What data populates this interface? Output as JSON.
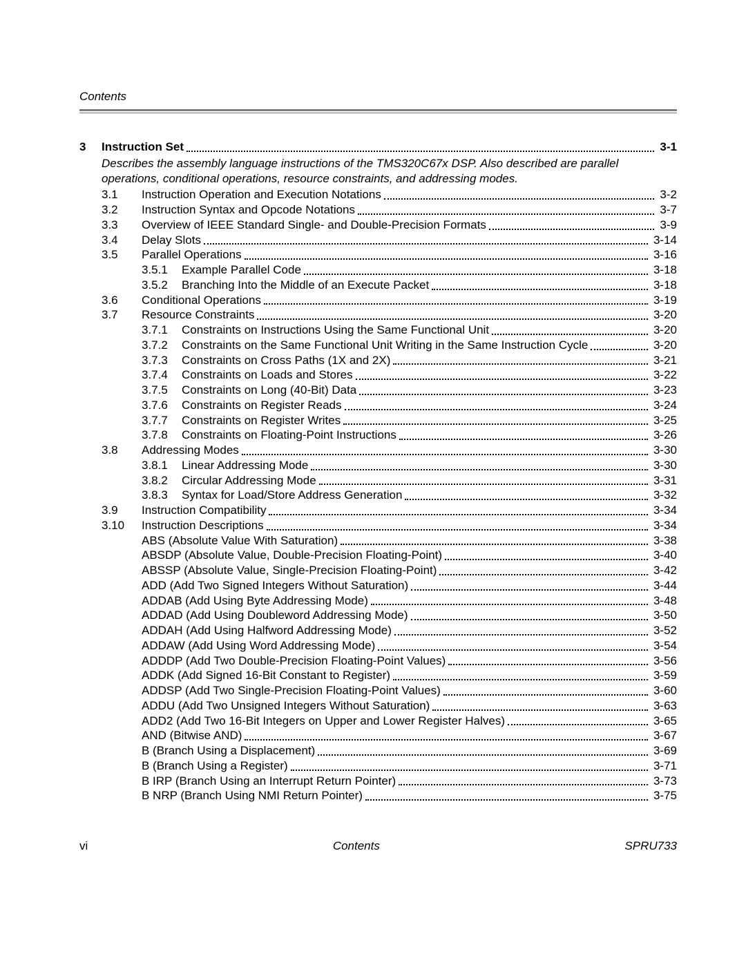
{
  "running_header": "Contents",
  "footer": {
    "left": "vi",
    "mid": "Contents",
    "right": "SPRU733"
  },
  "colors": {
    "rule": "#7a7a7a",
    "text": "#000000",
    "background": "#ffffff"
  },
  "typography": {
    "body_pt": 13,
    "line_height": 1.28,
    "font_family": "Helvetica/Arial"
  },
  "chapter": {
    "num": "3",
    "title": "Instruction Set",
    "page": "3-1",
    "description": "Describes the assembly language instructions of the TMS320C67x DSP. Also described are parallel operations, conditional operations, resource constraints, and addressing modes."
  },
  "entries": [
    {
      "sec": "3.1",
      "title": "Instruction Operation and Execution Notations",
      "page": "3-2"
    },
    {
      "sec": "3.2",
      "title": "Instruction Syntax and Opcode Notations",
      "page": "3-7"
    },
    {
      "sec": "3.3",
      "title": "Overview of IEEE Standard Single- and Double-Precision Formats",
      "page": "3-9"
    },
    {
      "sec": "3.4",
      "title": "Delay Slots",
      "page": "3-14"
    },
    {
      "sec": "3.5",
      "title": "Parallel Operations",
      "page": "3-16"
    },
    {
      "sub": "3.5.1",
      "title": "Example Parallel Code",
      "page": "3-18"
    },
    {
      "sub": "3.5.2",
      "title": "Branching Into the Middle of an Execute Packet",
      "page": "3-18"
    },
    {
      "sec": "3.6",
      "title": "Conditional Operations",
      "page": "3-19"
    },
    {
      "sec": "3.7",
      "title": "Resource Constraints",
      "page": "3-20"
    },
    {
      "sub": "3.7.1",
      "title": "Constraints on Instructions Using the Same Functional Unit",
      "page": "3-20"
    },
    {
      "sub": "3.7.2",
      "title": "Constraints on the Same Functional Unit Writing in the Same Instruction Cycle",
      "page": "3-20"
    },
    {
      "sub": "3.7.3",
      "title": "Constraints on Cross Paths (1X and 2X)",
      "page": "3-21"
    },
    {
      "sub": "3.7.4",
      "title": "Constraints on Loads and Stores",
      "page": "3-22"
    },
    {
      "sub": "3.7.5",
      "title": "Constraints on Long (40-Bit) Data",
      "page": "3-23"
    },
    {
      "sub": "3.7.6",
      "title": "Constraints on Register Reads",
      "page": "3-24"
    },
    {
      "sub": "3.7.7",
      "title": "Constraints on Register Writes",
      "page": "3-25"
    },
    {
      "sub": "3.7.8",
      "title": "Constraints on Floating-Point Instructions",
      "page": "3-26"
    },
    {
      "sec": "3.8",
      "title": "Addressing Modes",
      "page": "3-30"
    },
    {
      "sub": "3.8.1",
      "title": "Linear Addressing Mode",
      "page": "3-30"
    },
    {
      "sub": "3.8.2",
      "title": "Circular Addressing Mode",
      "page": "3-31"
    },
    {
      "sub": "3.8.3",
      "title": "Syntax for Load/Store Address Generation",
      "page": "3-32"
    },
    {
      "sec": "3.9",
      "title": "Instruction Compatibility",
      "page": "3-34"
    },
    {
      "sec": "3.10",
      "title": "Instruction Descriptions",
      "page": "3-34"
    },
    {
      "plain": true,
      "title": "ABS (Absolute Value With Saturation)",
      "page": "3-38"
    },
    {
      "plain": true,
      "title": "ABSDP (Absolute Value, Double-Precision Floating-Point)",
      "page": "3-40"
    },
    {
      "plain": true,
      "title": "ABSSP (Absolute Value, Single-Precision Floating-Point)",
      "page": "3-42"
    },
    {
      "plain": true,
      "title": "ADD (Add Two Signed Integers Without Saturation)",
      "page": "3-44"
    },
    {
      "plain": true,
      "title": "ADDAB (Add Using Byte Addressing Mode)",
      "page": "3-48"
    },
    {
      "plain": true,
      "title": "ADDAD (Add Using Doubleword Addressing Mode)",
      "page": "3-50"
    },
    {
      "plain": true,
      "title": "ADDAH (Add Using Halfword Addressing Mode)",
      "page": "3-52"
    },
    {
      "plain": true,
      "title": "ADDAW (Add Using Word Addressing Mode)",
      "page": "3-54"
    },
    {
      "plain": true,
      "title": "ADDDP (Add Two Double-Precision Floating-Point Values)",
      "page": "3-56"
    },
    {
      "plain": true,
      "title": "ADDK (Add Signed 16-Bit Constant to Register)",
      "page": "3-59"
    },
    {
      "plain": true,
      "title": "ADDSP (Add Two Single-Precision Floating-Point Values)",
      "page": "3-60"
    },
    {
      "plain": true,
      "title": "ADDU (Add Two Unsigned Integers Without Saturation)",
      "page": "3-63"
    },
    {
      "plain": true,
      "title": "ADD2 (Add Two 16-Bit Integers on Upper and Lower Register Halves)",
      "page": "3-65"
    },
    {
      "plain": true,
      "title": "AND (Bitwise AND)",
      "page": "3-67"
    },
    {
      "plain": true,
      "title": "B (Branch Using a Displacement)",
      "page": "3-69"
    },
    {
      "plain": true,
      "title": "B (Branch Using a Register)",
      "page": "3-71"
    },
    {
      "plain": true,
      "title": "B IRP (Branch Using an Interrupt Return Pointer)",
      "page": "3-73"
    },
    {
      "plain": true,
      "title": "B NRP (Branch Using NMI Return Pointer)",
      "page": "3-75"
    }
  ]
}
